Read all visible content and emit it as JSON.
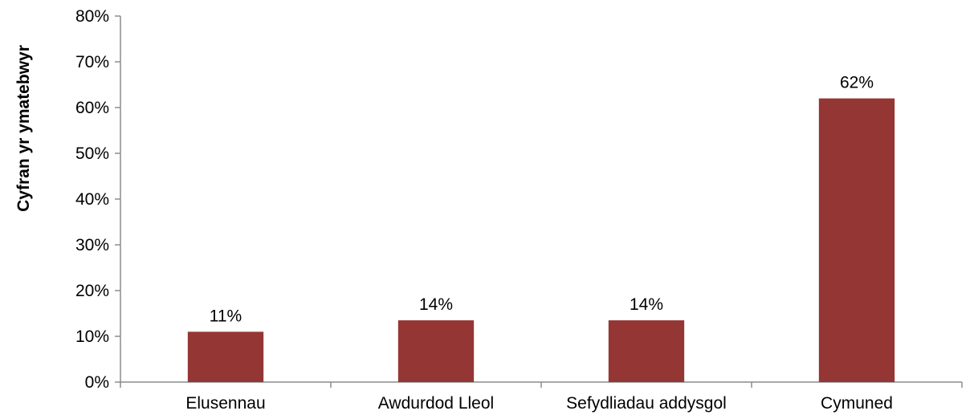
{
  "chart_data": {
    "type": "bar",
    "title": "",
    "xlabel": "",
    "ylabel": "Cyfran yr ymatebwyr",
    "categories": [
      "Elusennau",
      "Awdurdod Lleol",
      "Sefydliadau addysgol",
      "Cymuned"
    ],
    "values": [
      0.11,
      0.135,
      0.135,
      0.62
    ],
    "data_labels": [
      "11%",
      "14%",
      "14%",
      "62%"
    ],
    "ylim": [
      0,
      0.8
    ],
    "yticks": [
      0,
      0.1,
      0.2,
      0.3,
      0.4,
      0.5,
      0.6,
      0.7,
      0.8
    ],
    "ytick_labels": [
      "0%",
      "10%",
      "20%",
      "30%",
      "40%",
      "50%",
      "60%",
      "70%",
      "80%"
    ],
    "grid": false,
    "legend": "none",
    "bar_color": "#943634",
    "axis_color": "#8c8c8c"
  }
}
